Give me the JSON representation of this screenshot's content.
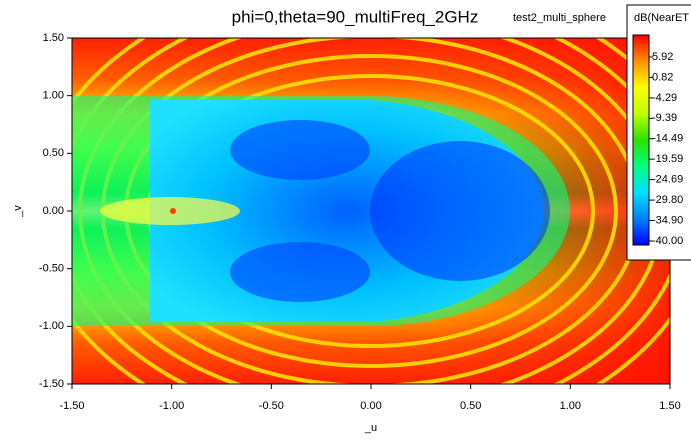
{
  "chart_data": {
    "type": "heatmap",
    "title": "phi=0,theta=90_multiFreq_2GHz",
    "subtitle": "test2_multi_sphere",
    "xlabel": "_u",
    "ylabel": "_v",
    "xlim": [
      -1.5,
      1.5
    ],
    "ylim": [
      -1.5,
      1.5
    ],
    "xticks": [
      {
        "value": -1.5,
        "label": "-1.50"
      },
      {
        "value": -1,
        "label": "-1.00"
      },
      {
        "value": -0.5,
        "label": "-0.50"
      },
      {
        "value": 0,
        "label": "0.00"
      },
      {
        "value": 0.5,
        "label": "0.50"
      },
      {
        "value": 1,
        "label": "1.00"
      },
      {
        "value": 1.5,
        "label": "1.50"
      }
    ],
    "yticks": [
      {
        "value": -1.5,
        "label": "-1.50"
      },
      {
        "value": -1,
        "label": "-1.00"
      },
      {
        "value": -0.5,
        "label": "-0.50"
      },
      {
        "value": 0,
        "label": "0.00"
      },
      {
        "value": 0.5,
        "label": "0.50"
      },
      {
        "value": 1,
        "label": "1.00"
      },
      {
        "value": 1.5,
        "label": "1.50"
      }
    ],
    "colorbar_label": "dB(NearET",
    "clim": [
      -41,
      11.4
    ],
    "cticks": [
      5.92,
      0.82,
      -4.29,
      -9.39,
      -14.49,
      -19.59,
      -24.69,
      {
        "value": -29.8,
        "label": "-29.80"
      },
      {
        "value": -34.9,
        "label": "-34.90"
      },
      {
        "value": -40,
        "label": "-40.00"
      }
    ],
    "colormap": [
      "#0000ff",
      "#0080ff",
      "#00e0ff",
      "#00ff80",
      "#30e000",
      "#c0ff00",
      "#ffff00",
      "#ff9000",
      "#ff0000"
    ]
  }
}
